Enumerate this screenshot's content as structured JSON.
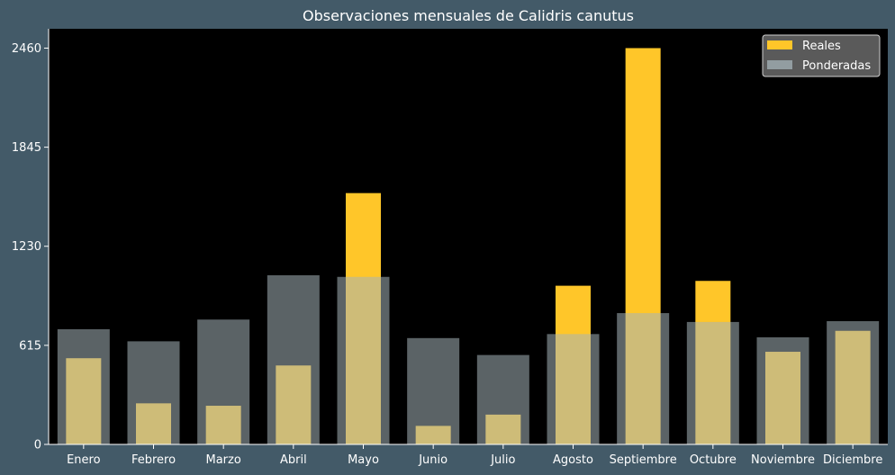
{
  "chart_data": {
    "type": "bar",
    "title": "Observaciones mensuales de Calidris canutus",
    "xlabel": "",
    "ylabel": "",
    "categories": [
      "Enero",
      "Febrero",
      "Marzo",
      "Abril",
      "Mayo",
      "Junio",
      "Julio",
      "Agosto",
      "Septiembre",
      "Octubre",
      "Noviembre",
      "Diciembre"
    ],
    "ylim": [
      0,
      2580
    ],
    "yticks": [
      0,
      615,
      1230,
      1845,
      2460
    ],
    "grid": false,
    "legend_position": "top-right",
    "series": [
      {
        "name": "Reales",
        "color": "#ffc629",
        "values": [
          535,
          255,
          240,
          490,
          1560,
          115,
          185,
          985,
          2460,
          1015,
          575,
          705
        ]
      },
      {
        "name": "Ponderadas",
        "color": "#a5b4ba",
        "opacity": 0.55,
        "values": [
          715,
          640,
          775,
          1050,
          1040,
          660,
          555,
          685,
          815,
          760,
          665,
          765
        ]
      }
    ],
    "plot_background": "#000000",
    "figure_background": "#435a68"
  }
}
